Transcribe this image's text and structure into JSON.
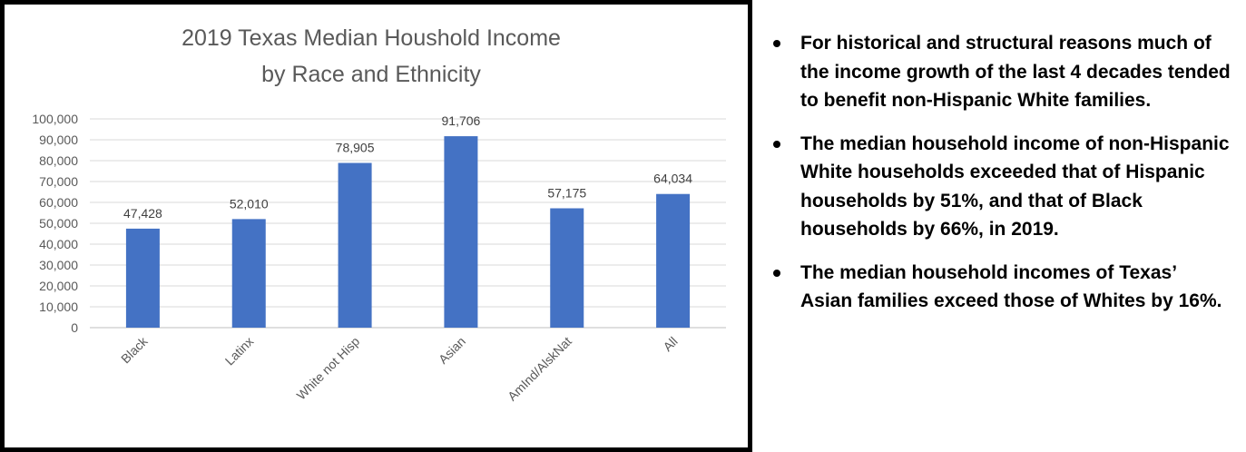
{
  "chart_data": {
    "type": "bar",
    "title": [
      "2019 Texas Median Houshold Income",
      "by Race and Ethnicity"
    ],
    "categories": [
      "Black",
      "Latinx",
      "White not Hisp",
      "Asian",
      "AmInd/AlskNat",
      "All"
    ],
    "values": [
      47428,
      52010,
      78905,
      91706,
      57175,
      64034
    ],
    "data_labels": [
      "47,428",
      "52,010",
      "78,905",
      "91,706",
      "57,175",
      "64,034"
    ],
    "y_ticks": [
      "0",
      "10,000",
      "20,000",
      "30,000",
      "40,000",
      "50,000",
      "60,000",
      "70,000",
      "80,000",
      "90,000",
      "100,000"
    ],
    "ylim": [
      0,
      100000
    ],
    "xlabel": "",
    "ylabel": "",
    "grid": true,
    "legend": "none",
    "bar_color": "#4472C4"
  },
  "bullets": [
    "For historical and structural reasons much of the income growth of the last 4 decades tended to benefit non-Hispanic White families.",
    "The median household income of non-Hispanic White households exceeded that of Hispanic households by 51%, and that of Black households by 66%, in 2019.",
    "The median household incomes of Texas’ Asian families exceed those of Whites by 16%."
  ]
}
